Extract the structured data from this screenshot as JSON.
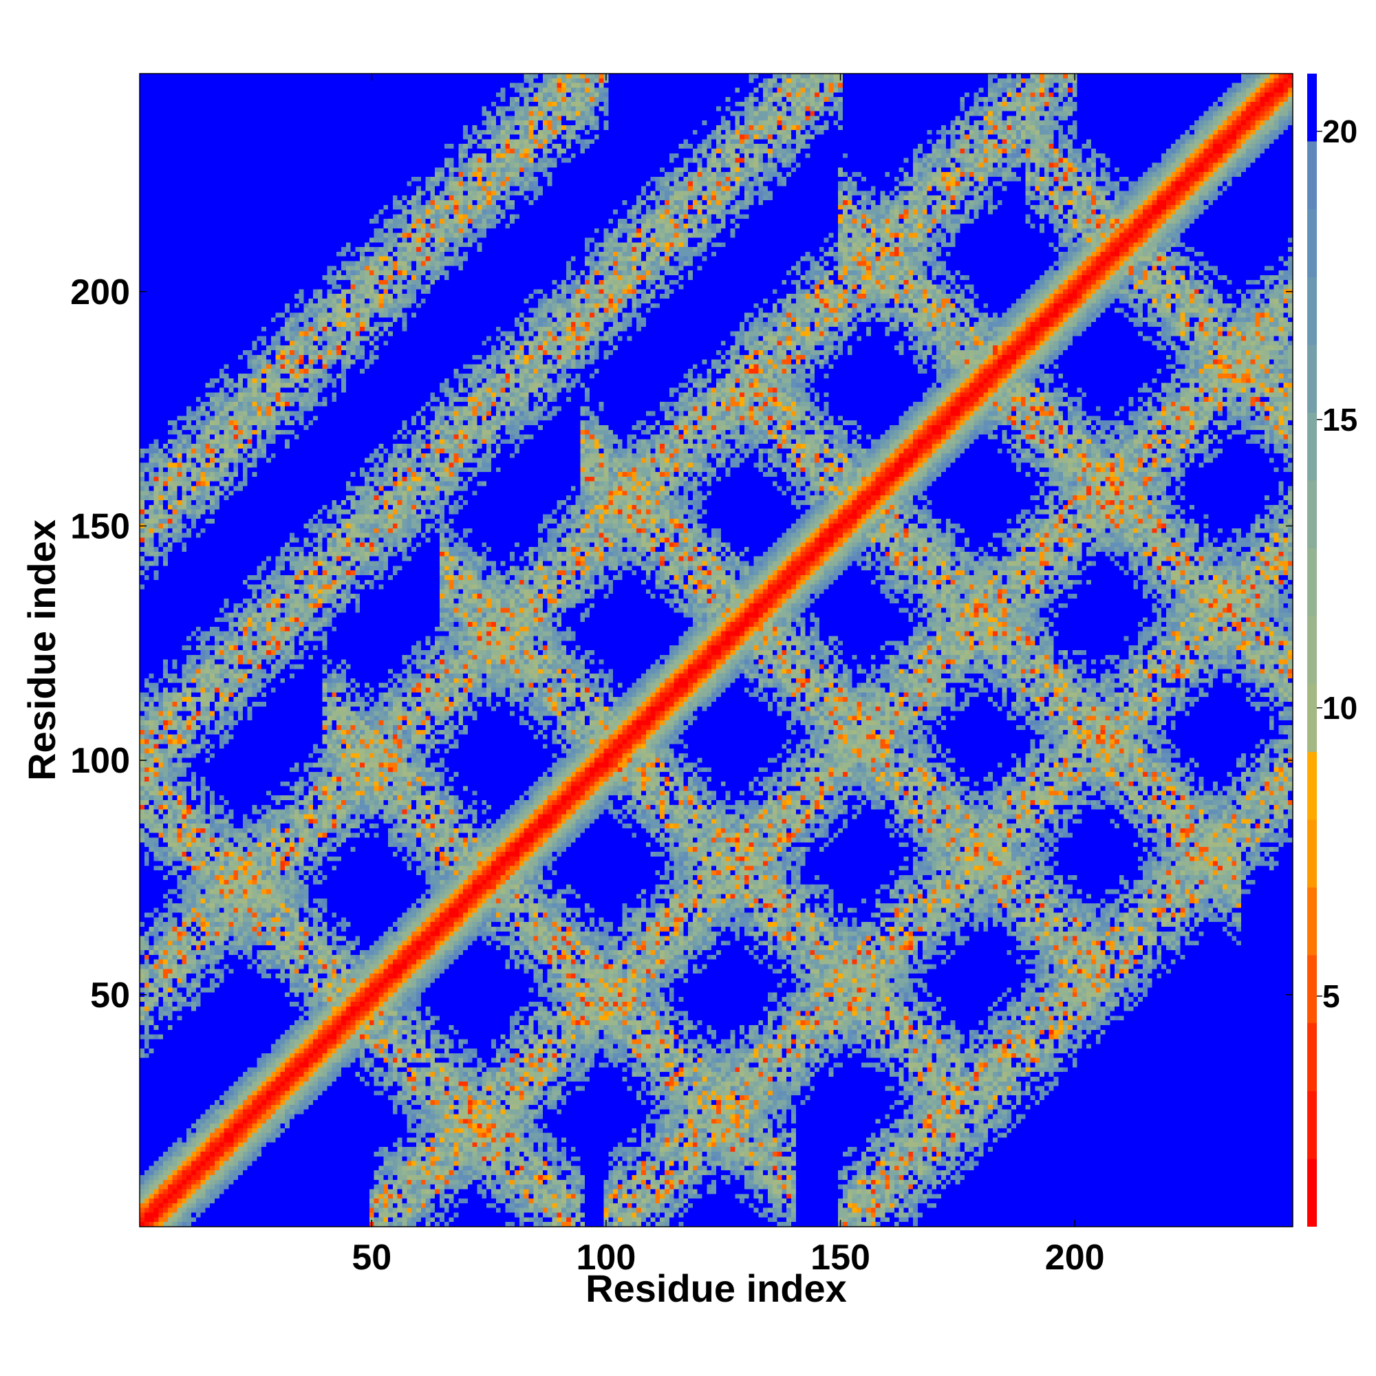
{
  "chart_data": {
    "type": "heatmap",
    "title": "",
    "xlabel": "Residue index",
    "ylabel": "Residue index",
    "n_residues": 246,
    "xlim": [
      1,
      246
    ],
    "ylim": [
      1,
      246
    ],
    "x_ticks": [
      50,
      100,
      150,
      200
    ],
    "y_ticks": [
      50,
      100,
      150,
      200
    ],
    "colorbar": {
      "range": [
        1,
        21
      ],
      "ticks": [
        5,
        10,
        15,
        20
      ],
      "colors": [
        "#ff0000",
        "#ff1a00",
        "#ff3300",
        "#ff5500",
        "#ff7700",
        "#ff9900",
        "#ffaa00",
        "#a3b882",
        "#9cb68c",
        "#93b392",
        "#8aae9a",
        "#7fa8a2",
        "#749faa",
        "#6a97b2",
        "#6390b8",
        "#5e88bc",
        "#0000ff"
      ]
    },
    "description_of_values": "Pairwise residue distance map: diagonal band ~1-8 (red/orange), off-diagonal contact bands ~10-20 (green/blue-grey), background >20 (blue)",
    "diagonal_band": {
      "core_halfwidth": 2,
      "orange_halfwidth": 4,
      "green_halfwidth": 8,
      "outer_halfwidth": 10
    },
    "crossing_bands": [
      {
        "along": "anti",
        "sum": 95,
        "range": [
          1,
          95
        ]
      },
      {
        "along": "anti",
        "sum": 150,
        "range": [
          40,
          140
        ]
      },
      {
        "along": "anti",
        "sum": 205,
        "range": [
          65,
          175
        ]
      },
      {
        "along": "anti",
        "sum": 260,
        "range": [
          95,
          205
        ]
      },
      {
        "along": "anti",
        "sum": 310,
        "range": [
          130,
          235
        ]
      },
      {
        "along": "anti",
        "sum": 365,
        "range": [
          150,
          246
        ]
      },
      {
        "along": "anti",
        "sum": 420,
        "range": [
          190,
          246
        ]
      },
      {
        "along": "par",
        "offset": 50,
        "range": [
          1,
          200
        ]
      },
      {
        "along": "par",
        "offset": 100,
        "range": [
          1,
          150
        ]
      },
      {
        "along": "par",
        "offset": 150,
        "range": [
          1,
          100
        ]
      },
      {
        "along": "par",
        "offset": -50,
        "range": [
          50,
          246
        ]
      },
      {
        "along": "par",
        "offset": -100,
        "range": [
          100,
          246
        ]
      },
      {
        "along": "par",
        "offset": -150,
        "range": [
          150,
          246
        ]
      }
    ]
  }
}
